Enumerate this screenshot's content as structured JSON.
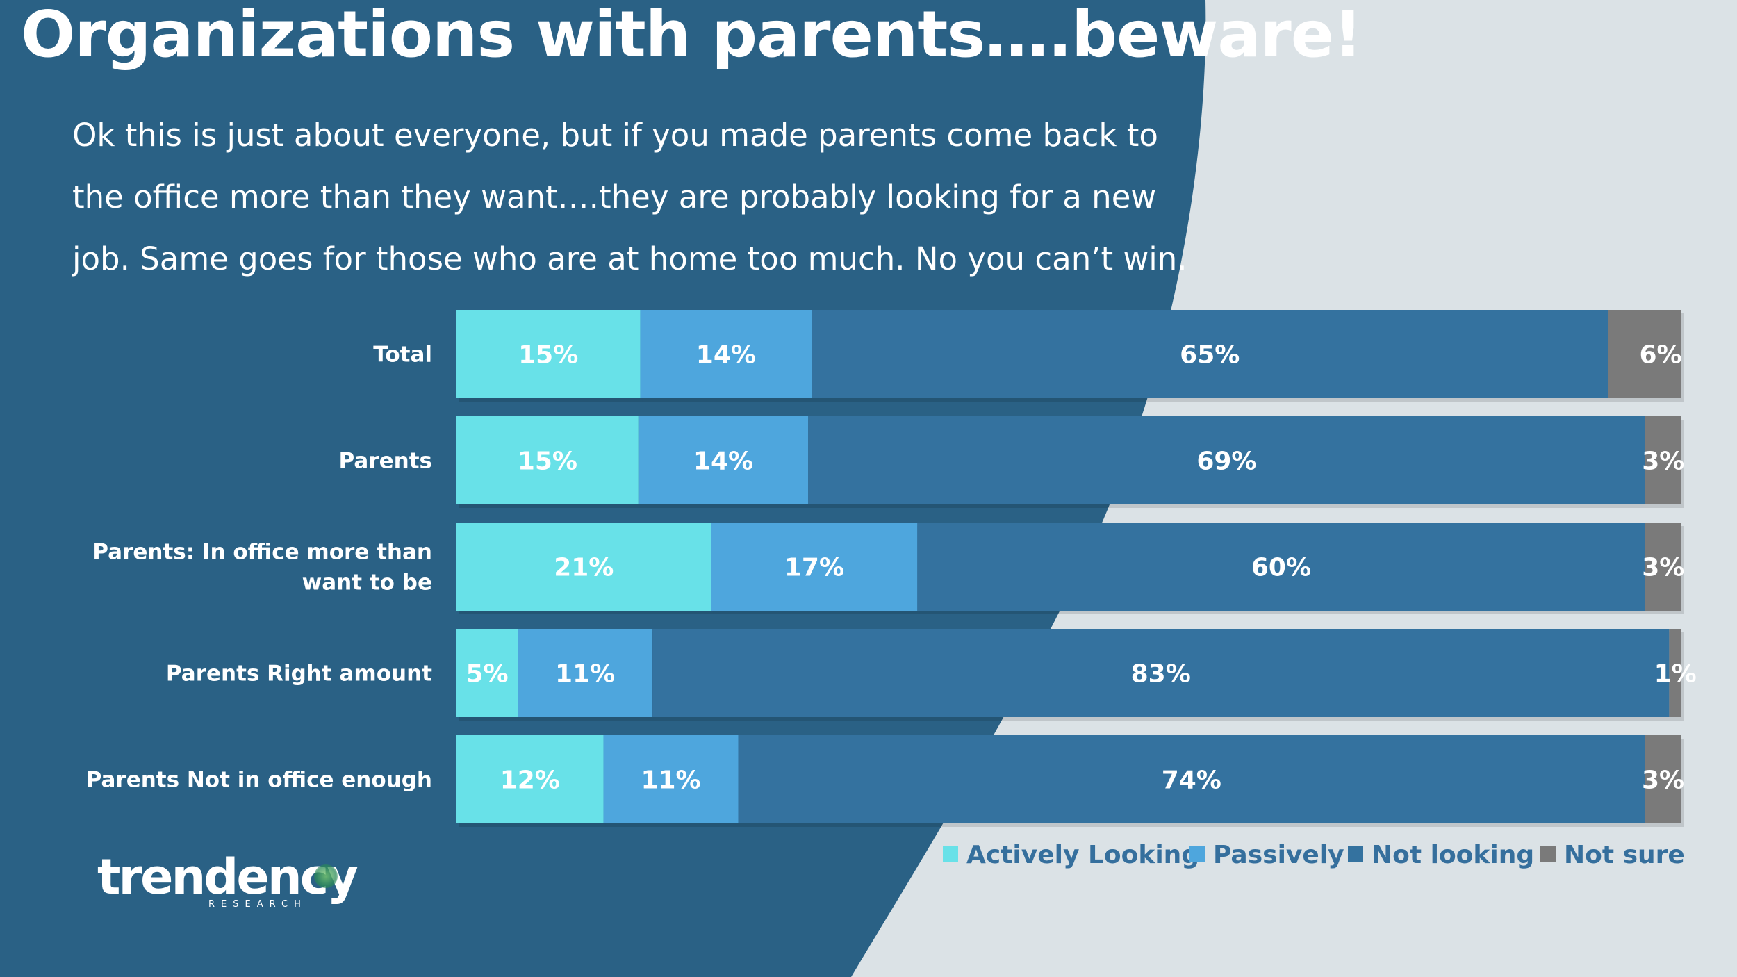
{
  "title": "Organizations with parents….beware!",
  "subtitle": "Ok this is just about everyone, but if you made parents come back to the office more than they want….they are probably looking for a new job. Same goes for those who are at home too much. No you can’t win.",
  "logo": {
    "word": "trendency",
    "sub": "RESEARCH"
  },
  "colors": {
    "background": "#dbe2e6",
    "panel": "#2a6185",
    "actively": "#68e1e8",
    "passively": "#4ea6dd",
    "not_looking": "#34729f",
    "not_sure": "#7a7a7a",
    "legend_text": "#356f9d"
  },
  "chart_data": {
    "type": "bar",
    "orientation": "horizontal",
    "stacked": true,
    "categories": [
      "Total",
      "Parents",
      "Parents: In office more than want to be",
      "Parents Right amount",
      "Parents Not in office enough"
    ],
    "category_label_lines": [
      [
        "Total"
      ],
      [
        "Parents"
      ],
      [
        "Parents: In office more than",
        "want to be"
      ],
      [
        "Parents Right amount"
      ],
      [
        "Parents Not in office enough"
      ]
    ],
    "series": [
      {
        "name": "Actively Looking",
        "values": [
          15,
          15,
          21,
          5,
          12
        ],
        "labels": [
          "15%",
          "15%",
          "21%",
          "5%",
          "12%"
        ]
      },
      {
        "name": "Passively",
        "values": [
          14,
          14,
          17,
          11,
          11
        ],
        "labels": [
          "14%",
          "14%",
          "17%",
          "11%",
          "11%"
        ]
      },
      {
        "name": "Not looking",
        "values": [
          65,
          69,
          60,
          83,
          74
        ],
        "labels": [
          "65%",
          "69%",
          "60%",
          "83%",
          "74%"
        ]
      },
      {
        "name": "Not sure",
        "values": [
          6,
          3,
          3,
          1,
          3
        ],
        "labels": [
          "6%",
          "3%",
          "3%",
          "1%",
          "3%"
        ]
      }
    ],
    "legend_position": "bottom-right",
    "grid": false
  }
}
